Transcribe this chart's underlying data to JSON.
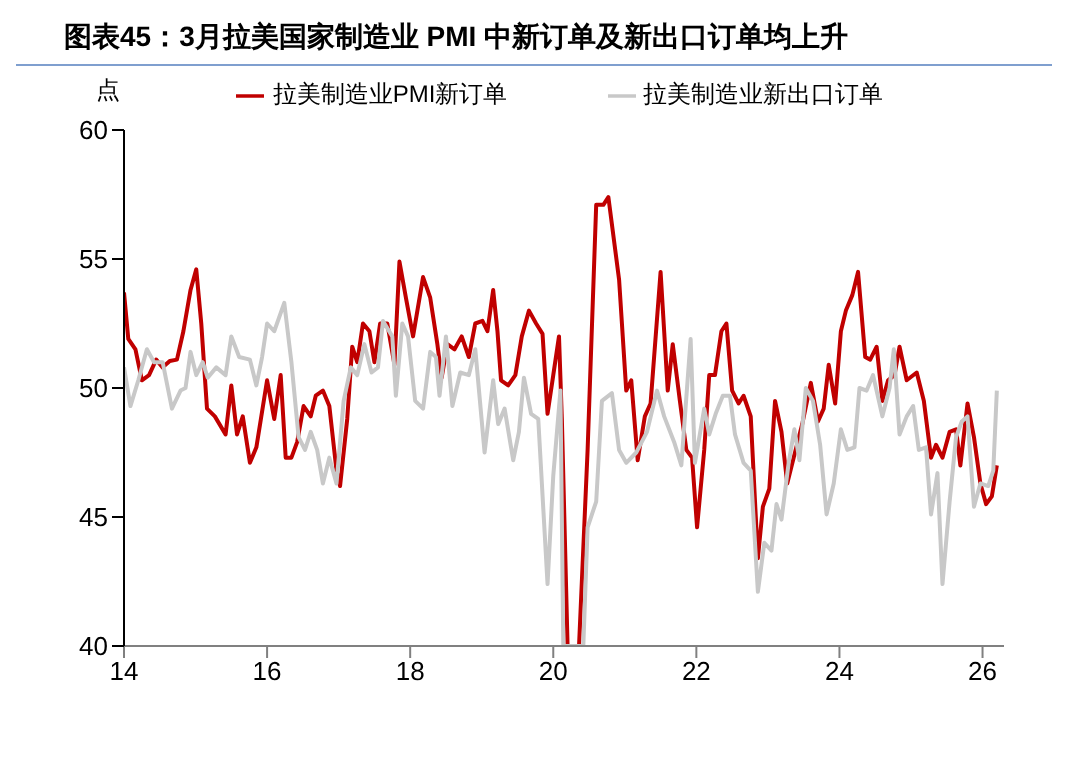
{
  "chart_data": {
    "type": "line",
    "title": "图表45：3月拉美国家制造业 PMI 中新订单及新出口订单均上升",
    "ylabel": "点",
    "xlim": [
      14,
      26.3
    ],
    "xticks": [
      14,
      16,
      18,
      20,
      22,
      24,
      26
    ],
    "ylim": [
      40,
      60
    ],
    "yticks": [
      40,
      45,
      50,
      55,
      60
    ],
    "grid": false,
    "legend": "top",
    "marker": "none",
    "line_style": "solid",
    "series": [
      {
        "name": "拉美制造业PMI新订单",
        "color": "#c00000",
        "x": [
          14.0,
          14.06,
          14.16,
          14.25,
          14.35,
          14.45,
          14.54,
          14.64,
          14.74,
          14.83,
          14.93,
          15.01,
          15.08,
          15.16,
          15.27,
          15.42,
          15.5,
          15.58,
          15.66,
          15.76,
          15.85,
          16.0,
          16.1,
          16.19,
          16.26,
          16.34,
          16.42,
          16.51,
          16.61,
          16.68,
          16.78,
          16.87,
          16.97,
          17.02,
          17.12,
          17.19,
          17.26,
          17.34,
          17.43,
          17.5,
          17.58,
          17.68,
          17.78,
          17.85,
          17.94,
          18.04,
          18.18,
          18.28,
          18.38,
          18.44,
          18.52,
          18.62,
          18.72,
          18.82,
          18.91,
          19.01,
          19.08,
          19.16,
          19.22,
          19.27,
          19.37,
          19.47,
          19.56,
          19.66,
          19.76,
          19.85,
          19.92,
          20.0,
          20.08,
          20.12,
          20.2,
          20.36,
          20.48,
          20.6,
          20.7,
          20.77,
          20.92,
          21.02,
          21.09,
          21.18,
          21.28,
          21.36,
          21.5,
          21.6,
          21.67,
          21.77,
          21.86,
          21.94,
          22.01,
          22.11,
          22.18,
          22.26,
          22.35,
          22.42,
          22.5,
          22.59,
          22.66,
          22.76,
          22.86,
          22.93,
          23.02,
          23.1,
          23.19,
          23.27,
          23.36,
          23.48,
          23.6,
          23.7,
          23.78,
          23.85,
          23.94,
          24.02,
          24.09,
          24.18,
          24.26,
          24.36,
          24.43,
          24.52,
          24.6,
          24.68,
          24.77,
          24.84,
          24.94,
          25.08,
          25.18,
          25.28,
          25.35,
          25.44,
          25.54,
          25.63,
          25.69,
          25.79,
          25.88,
          25.97,
          26.05,
          26.13,
          26.2
        ],
        "values": [
          53.7,
          51.9,
          51.5,
          50.3,
          50.5,
          51.1,
          50.8,
          51.05,
          51.1,
          52.2,
          53.8,
          54.6,
          52.5,
          49.2,
          48.9,
          48.2,
          50.1,
          48.2,
          48.9,
          47.1,
          47.7,
          50.3,
          48.8,
          50.5,
          47.3,
          47.3,
          47.9,
          49.3,
          48.9,
          49.7,
          49.9,
          49.3,
          46.8,
          46.2,
          48.8,
          51.6,
          51.0,
          52.5,
          52.2,
          51.0,
          52.5,
          52.5,
          50.9,
          54.9,
          53.5,
          52.0,
          54.3,
          53.5,
          51.7,
          50.4,
          51.7,
          51.5,
          52.0,
          51.2,
          52.5,
          52.6,
          52.2,
          53.8,
          52.2,
          50.3,
          50.1,
          50.5,
          52.0,
          53.0,
          52.5,
          52.1,
          49.0,
          50.5,
          52.0,
          48.8,
          40,
          40,
          47.6,
          57.1,
          57.1,
          57.4,
          54.2,
          49.9,
          50.3,
          47.2,
          48.9,
          49.4,
          54.5,
          49.9,
          51.7,
          49.5,
          47.6,
          47.3,
          44.6,
          47.6,
          50.5,
          50.5,
          52.2,
          52.5,
          49.9,
          49.4,
          49.7,
          48.9,
          43.4,
          45.4,
          46.1,
          49.5,
          48.3,
          46.3,
          47.3,
          48.6,
          50.2,
          48.7,
          49.2,
          50.9,
          49.4,
          52.2,
          53.0,
          53.6,
          54.5,
          51.2,
          51.1,
          51.6,
          49.5,
          50.3,
          50.5,
          51.6,
          50.3,
          50.6,
          49.5,
          47.3,
          47.8,
          47.3,
          48.3,
          48.4,
          47.0,
          49.4,
          48.1,
          46.3,
          45.5,
          45.8,
          47.0
        ]
      },
      {
        "name": "拉美制造业新出口订单",
        "color": "#c8c8c8",
        "x": [
          14.0,
          14.09,
          14.2,
          14.32,
          14.42,
          14.54,
          14.67,
          14.79,
          14.86,
          14.93,
          15.01,
          15.1,
          15.17,
          15.29,
          15.42,
          15.5,
          15.61,
          15.76,
          15.85,
          15.93,
          16.0,
          16.1,
          16.24,
          16.34,
          16.44,
          16.53,
          16.61,
          16.7,
          16.78,
          16.87,
          16.97,
          17.07,
          17.17,
          17.26,
          17.36,
          17.46,
          17.55,
          17.62,
          17.75,
          17.8,
          17.89,
          17.97,
          18.07,
          18.18,
          18.28,
          18.36,
          18.41,
          18.5,
          18.59,
          18.7,
          18.82,
          18.91,
          19.04,
          19.16,
          19.23,
          19.32,
          19.44,
          19.52,
          19.59,
          19.69,
          19.79,
          19.92,
          20.0,
          20.1,
          20.14,
          20.42,
          20.48,
          20.6,
          20.68,
          20.82,
          20.92,
          21.02,
          21.16,
          21.31,
          21.45,
          21.55,
          21.69,
          21.79,
          21.92,
          21.98,
          22.11,
          22.18,
          22.27,
          22.37,
          22.47,
          22.54,
          22.66,
          22.76,
          22.86,
          22.95,
          23.05,
          23.12,
          23.19,
          23.29,
          23.37,
          23.44,
          23.53,
          23.63,
          23.73,
          23.82,
          23.92,
          24.02,
          24.11,
          24.21,
          24.28,
          24.38,
          24.47,
          24.6,
          24.7,
          24.76,
          24.84,
          24.94,
          25.03,
          25.11,
          25.21,
          25.28,
          25.37,
          25.44,
          25.54,
          25.63,
          25.71,
          25.79,
          25.88,
          25.97,
          26.08,
          26.15,
          26.2
        ],
        "values": [
          50.8,
          49.3,
          50.3,
          51.5,
          51.0,
          51.0,
          49.2,
          49.9,
          50.0,
          51.4,
          50.5,
          51.0,
          50.4,
          50.8,
          50.5,
          52.0,
          51.2,
          51.1,
          50.1,
          51.2,
          52.5,
          52.2,
          53.3,
          51.0,
          48.1,
          47.6,
          48.3,
          47.6,
          46.3,
          47.3,
          46.3,
          49.5,
          50.8,
          50.5,
          51.7,
          50.6,
          50.8,
          52.6,
          52.0,
          49.7,
          52.5,
          52.0,
          49.5,
          49.2,
          51.4,
          51.2,
          49.7,
          52.0,
          49.3,
          50.6,
          50.5,
          51.5,
          47.5,
          50.3,
          48.6,
          49.2,
          47.2,
          48.3,
          50.4,
          49.0,
          48.8,
          42.4,
          46.6,
          49.9,
          40,
          40,
          44.6,
          45.6,
          49.5,
          49.8,
          47.6,
          47.1,
          47.5,
          48.3,
          49.9,
          48.9,
          47.9,
          47.0,
          51.9,
          47.1,
          49.2,
          48.2,
          49.0,
          49.7,
          49.7,
          48.2,
          47.1,
          46.8,
          42.1,
          44.0,
          43.7,
          45.5,
          44.9,
          47.1,
          48.4,
          47.2,
          50.0,
          49.5,
          47.8,
          45.1,
          46.3,
          48.4,
          47.6,
          47.7,
          50.0,
          49.9,
          50.5,
          48.9,
          50.0,
          51.5,
          48.2,
          48.9,
          49.3,
          47.6,
          47.7,
          45.1,
          46.7,
          42.4,
          45.6,
          48.1,
          48.7,
          48.9,
          45.4,
          46.3,
          46.2,
          46.8,
          49.9
        ]
      }
    ]
  }
}
